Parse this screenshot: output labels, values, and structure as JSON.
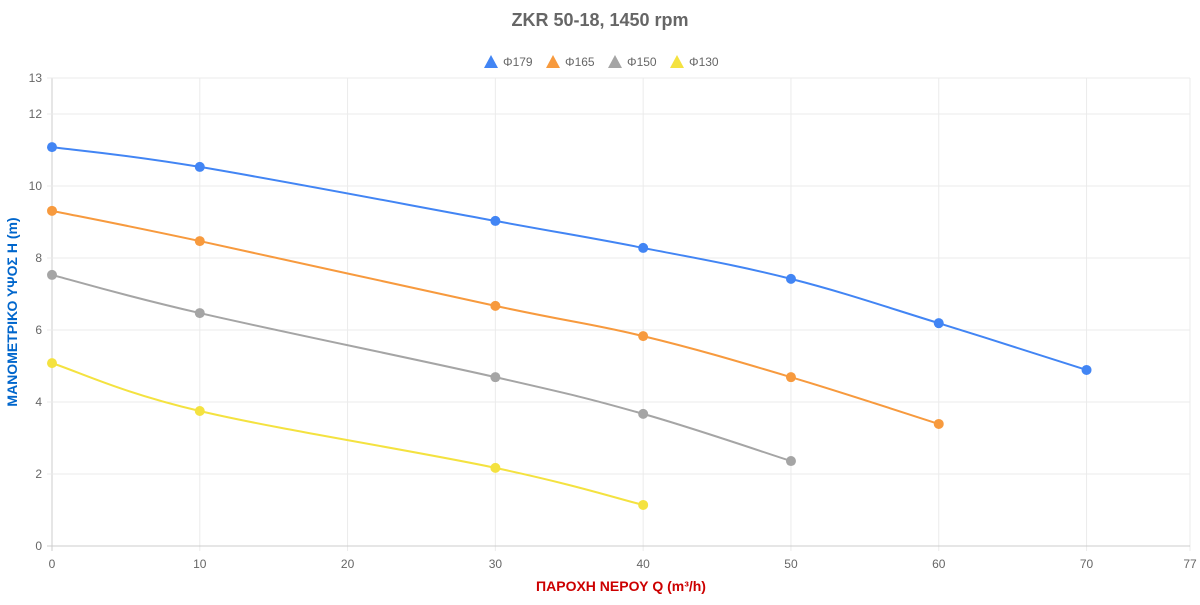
{
  "chart_data": {
    "type": "line",
    "title": "ZKR 50-18, 1450 rpm",
    "xlabel": "ΠΑΡΟΧΗ ΝΕΡΟΥ Q (m³/h)",
    "ylabel": "ΜΑΝΟΜΕΤΡΙΚΟ ΥΨΟΣ Η (m)",
    "xlim": [
      0,
      77
    ],
    "ylim": [
      0,
      13
    ],
    "xticks": [
      0,
      10,
      20,
      30,
      40,
      50,
      60,
      70,
      77
    ],
    "yticks": [
      0,
      2,
      4,
      6,
      8,
      10,
      12,
      13
    ],
    "grid": true,
    "legend": "top",
    "title_color": "#666666",
    "xlabel_color": "#cc0000",
    "ylabel_color": "#0066cc",
    "series": [
      {
        "name": "Φ179",
        "color": "#4285f4",
        "x": [
          0,
          10,
          30,
          40,
          50,
          60,
          70
        ],
        "y": [
          11.08,
          10.53,
          9.03,
          8.28,
          7.42,
          6.19,
          4.89
        ]
      },
      {
        "name": "Φ165",
        "color": "#f79a3e",
        "x": [
          0,
          10,
          30,
          40,
          50,
          60
        ],
        "y": [
          9.31,
          8.47,
          6.67,
          5.83,
          4.69,
          3.39
        ]
      },
      {
        "name": "Φ150",
        "color": "#a5a5a5",
        "x": [
          0,
          10,
          30,
          40,
          50
        ],
        "y": [
          7.53,
          6.47,
          4.69,
          3.67,
          2.36
        ]
      },
      {
        "name": "Φ130",
        "color": "#f4e240",
        "x": [
          0,
          10,
          30,
          40
        ],
        "y": [
          5.08,
          3.75,
          2.17,
          1.14
        ]
      }
    ]
  }
}
